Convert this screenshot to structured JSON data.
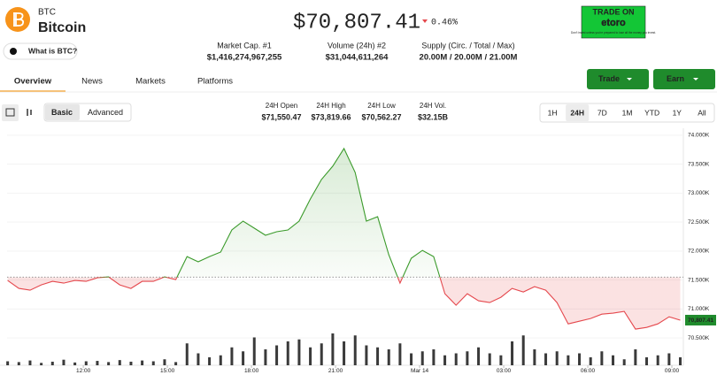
{
  "header": {
    "symbol": "BTC",
    "name": "Bitcoin",
    "what_is": "What is BTC?",
    "price": "$70,807.41",
    "change": "0.46%",
    "ad": {
      "title": "TRADE ON",
      "brand": "etoro",
      "note": "Don't invest unless you're prepared to lose all the money you invest."
    }
  },
  "stats": [
    {
      "label": "Market Cap. #1",
      "value": "$1,416,274,967,255"
    },
    {
      "label": "Volume (24h) #2",
      "value": "$31,044,611,264"
    },
    {
      "label": "Supply (Circ. / Total / Max)",
      "value": "20.00M / 20.00M / 21.00M"
    }
  ],
  "tabs": [
    "Overview",
    "News",
    "Markets",
    "Platforms"
  ],
  "buttons": [
    "Trade",
    "Earn"
  ],
  "modes": [
    "Basic",
    "Advanced"
  ],
  "day_stats": [
    {
      "label": "24H Open",
      "value": "$71,550.47"
    },
    {
      "label": "24H High",
      "value": "$73,819.66"
    },
    {
      "label": "24H Low",
      "value": "$70,562.27"
    },
    {
      "label": "24H Vol.",
      "value": "$32.15B"
    }
  ],
  "ranges": [
    "1H",
    "24H",
    "7D",
    "1M",
    "YTD",
    "1Y",
    "All"
  ],
  "chart_data": {
    "type": "line",
    "x": [
      9.3,
      9.7,
      10.1,
      10.5,
      10.9,
      11.3,
      11.7,
      12.1,
      12.5,
      12.9,
      13.3,
      13.7,
      14.1,
      14.5,
      14.9,
      15.3,
      15.7,
      16.1,
      16.5,
      16.9,
      17.3,
      17.7,
      18.1,
      18.5,
      18.9,
      19.3,
      19.7,
      20.1,
      20.5,
      20.9,
      21.3,
      21.7,
      22.1,
      22.5,
      22.9,
      23.3,
      23.7,
      24.1,
      24.5,
      24.9,
      25.3,
      25.7,
      26.1,
      26.5,
      26.9,
      27.3,
      27.7,
      28.1,
      28.5,
      28.9,
      29.3,
      29.7,
      30.1,
      30.5,
      30.9,
      31.3,
      31.7,
      32.1,
      32.5,
      32.9,
      33.3
    ],
    "values": [
      71492,
      71355,
      71324,
      71416,
      71477,
      71447,
      71492,
      71477,
      71538,
      71554,
      71416,
      71355,
      71477,
      71477,
      71554,
      71508,
      71905,
      71814,
      71905,
      71982,
      72364,
      72517,
      72395,
      72272,
      72334,
      72364,
      72517,
      72899,
      73236,
      73465,
      73771,
      73358,
      72517,
      72593,
      71936,
      71447,
      71875,
      72012,
      71905,
      71263,
      71064,
      71263,
      71141,
      71110,
      71202,
      71355,
      71294,
      71385,
      71324,
      71110,
      70743,
      70789,
      70835,
      70911,
      70927,
      70957,
      70652,
      70682,
      70743,
      70865,
      70807
    ],
    "volume": [
      10,
      8,
      12,
      6,
      9,
      14,
      7,
      10,
      11,
      8,
      13,
      9,
      12,
      10,
      15,
      8,
      55,
      30,
      20,
      25,
      45,
      35,
      70,
      40,
      50,
      60,
      65,
      45,
      55,
      80,
      60,
      75,
      50,
      45,
      40,
      55,
      30,
      35,
      40,
      25,
      30,
      35,
      45,
      30,
      25,
      60,
      75,
      40,
      30,
      35,
      25,
      30,
      20,
      35,
      25,
      15,
      40,
      20,
      25,
      30,
      20
    ],
    "volume_lim": [
      0,
      100
    ],
    "volume_color": "#3a3a3a",
    "colors": {
      "up": "#3a9a2a",
      "down": "#e5484d"
    },
    "baseline": 71550,
    "last_label": "70,807.41",
    "xlim": [
      9.28,
      33.41
    ],
    "xticks": [
      {
        "value": 12,
        "label": "12:00"
      },
      {
        "value": 15,
        "label": "15:00"
      },
      {
        "value": 18,
        "label": "18:00"
      },
      {
        "value": 21,
        "label": "21:00"
      },
      {
        "value": 24,
        "label": "Mar 14"
      },
      {
        "value": 27,
        "label": "03:00"
      },
      {
        "value": 30,
        "label": "06:00"
      },
      {
        "value": 33,
        "label": "09:00"
      }
    ],
    "ylim": [
      70150,
      74120
    ],
    "yticks": [
      {
        "value": 74000,
        "label": "74.000K"
      },
      {
        "value": 73500,
        "label": "73.500K"
      },
      {
        "value": 73000,
        "label": "73.000K"
      },
      {
        "value": 72500,
        "label": "72.500K"
      },
      {
        "value": 72000,
        "label": "72.000K"
      },
      {
        "value": 71500,
        "label": "71.500K"
      },
      {
        "value": 71000,
        "label": "71.000K"
      },
      {
        "value": 70500,
        "label": "70.500K"
      }
    ],
    "grid": true
  }
}
